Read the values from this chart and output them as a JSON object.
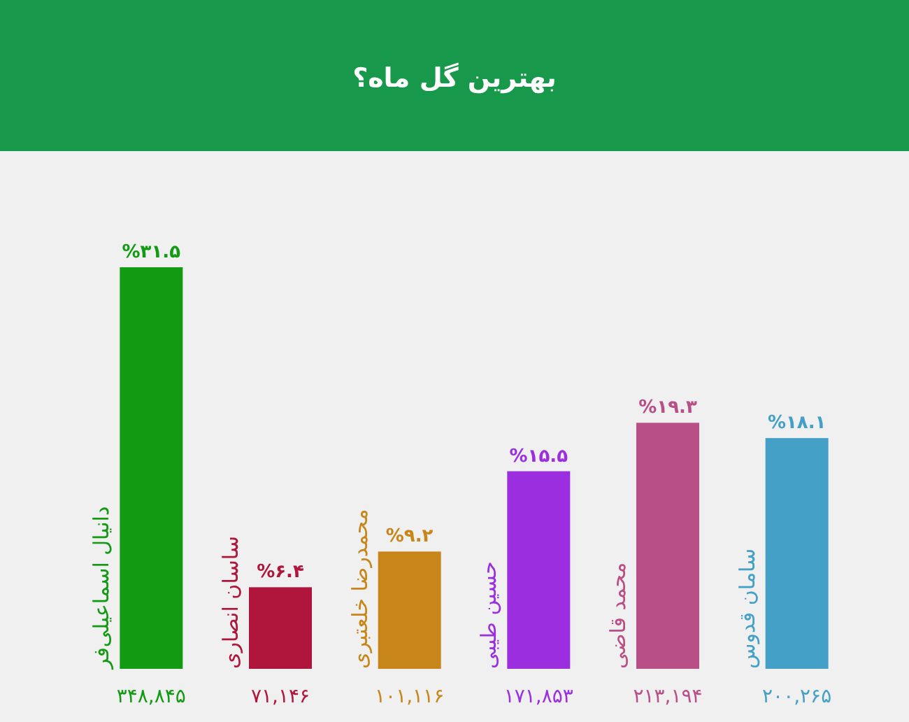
{
  "chart_data": {
    "type": "bar",
    "title": "بهترین گل ماه؟",
    "categories": [
      "دانیال اسماعیلی‌فر",
      "ساسان انصاری",
      "محمدرضا خلعتبری",
      "حسین طیبی",
      "محمد قاضی",
      "سامان قدوس"
    ],
    "values": [
      31.5,
      6.4,
      9.2,
      15.5,
      19.3,
      18.1
    ],
    "value_labels": [
      "%۳۱.۵",
      "%۶.۴",
      "%۹.۲",
      "%۱۵.۵",
      "%۱۹.۳",
      "%۱۸.۱"
    ],
    "colors": [
      "#129a12",
      "#b0163c",
      "#c8861a",
      "#9b2fe0",
      "#b84f86",
      "#45a0c8"
    ],
    "annotations": [
      "۳۴۸,۸۴۵",
      "۷۱,۱۴۶",
      "۱۰۱,۱۱۶",
      "۱۷۱,۸۵۳",
      "۲۱۳,۱۹۴",
      "۲۰۰,۲۶۵"
    ]
  }
}
